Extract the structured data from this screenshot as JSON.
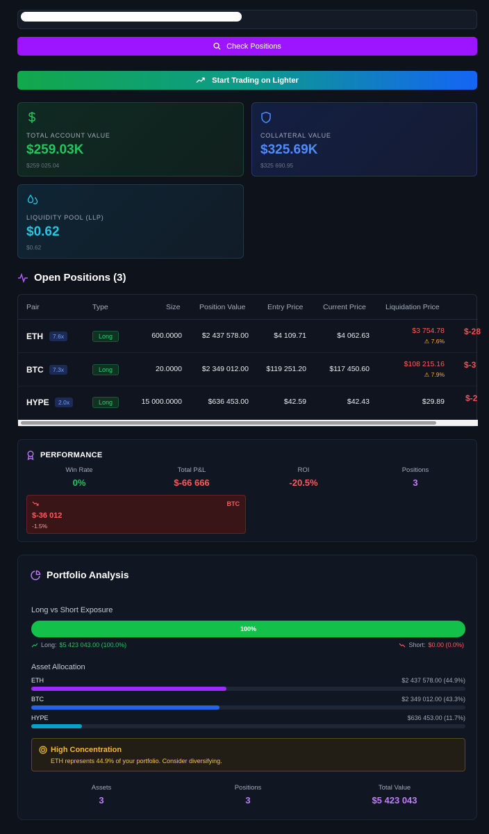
{
  "search": {
    "value": ""
  },
  "buttons": {
    "check_positions": "Check Positions",
    "start_trading": "Start Trading on Lighter"
  },
  "cards": {
    "total_account": {
      "label": "TOTAL ACCOUNT VALUE",
      "value": "$259.03K",
      "exact": "$259 025.04",
      "icon": "dollar-icon",
      "color": "#22c55e"
    },
    "collateral": {
      "label": "COLLATERAL VALUE",
      "value": "$325.69K",
      "exact": "$325 690.95",
      "icon": "shield-icon",
      "color": "#4f8dff"
    },
    "liquidity_pool": {
      "label": "LIQUIDITY POOL (LLP)",
      "value": "$0.62",
      "exact": "$0.62",
      "icon": "droplets-icon",
      "color": "#22c7e6"
    }
  },
  "open_positions": {
    "title": "Open Positions (3)",
    "columns": [
      "Pair",
      "Type",
      "Size",
      "Position Value",
      "Entry Price",
      "Current Price",
      "Liquidation Price"
    ],
    "rows": [
      {
        "pair": "ETH",
        "leverage": "7.6x",
        "type": "Long",
        "size": "600.0000",
        "position_value": "$2 437 578.00",
        "entry": "$4 109.71",
        "current": "$4 062.63",
        "liq": "$3 754.78",
        "liq_warn": "⚠ 7.6%",
        "pnl_cut": "$-28"
      },
      {
        "pair": "BTC",
        "leverage": "7.3x",
        "type": "Long",
        "size": "20.0000",
        "position_value": "$2 349 012.00",
        "entry": "$119 251.20",
        "current": "$117 450.60",
        "liq": "$108 215.16",
        "liq_warn": "⚠ 7.9%",
        "pnl_cut": "$-3"
      },
      {
        "pair": "HYPE",
        "leverage": "2.0x",
        "type": "Long",
        "size": "15 000.0000",
        "position_value": "$636 453.00",
        "entry": "$42.59",
        "current": "$42.43",
        "liq": "$29.89",
        "liq_warn": "",
        "pnl_cut": "$-2"
      }
    ]
  },
  "performance": {
    "title": "PERFORMANCE",
    "stats": [
      {
        "label": "Win Rate",
        "value": "0%",
        "color": "#22c55e"
      },
      {
        "label": "Total P&L",
        "value": "$-66 666",
        "color": "#ff5a5a"
      },
      {
        "label": "ROI",
        "value": "-20.5%",
        "color": "#ff5a5a"
      },
      {
        "label": "Positions",
        "value": "3",
        "color": "#c27cff"
      }
    ],
    "worst": {
      "pair": "BTC",
      "amount": "$-36 012",
      "pct": "-1.5%"
    }
  },
  "portfolio": {
    "title": "Portfolio Analysis",
    "exposure_label": "Long vs Short Exposure",
    "exposure_pct_text": "100%",
    "long_fraction": 1.0,
    "long_label": "Long:",
    "long_value": "$5 423 043.00 (100.0%)",
    "short_label": "Short:",
    "short_value": "$0.00 (0.0%)",
    "allocation_label": "Asset Allocation",
    "allocation": [
      {
        "name": "ETH",
        "amount": "$2 437 578.00 (44.9%)",
        "fraction": 0.449,
        "color": "#9d2bff"
      },
      {
        "name": "BTC",
        "amount": "$2 349 012.00 (43.3%)",
        "fraction": 0.433,
        "color": "#2563eb"
      },
      {
        "name": "HYPE",
        "amount": "$636 453.00 (11.7%)",
        "fraction": 0.117,
        "color": "#06a3c4"
      }
    ],
    "warning": {
      "title": "High Concentration",
      "text": "ETH represents 44.9% of your portfolio. Consider diversifying."
    },
    "summary": [
      {
        "label": "Assets",
        "value": "3"
      },
      {
        "label": "Positions",
        "value": "3"
      },
      {
        "label": "Total Value",
        "value": "$5 423 043"
      }
    ]
  }
}
